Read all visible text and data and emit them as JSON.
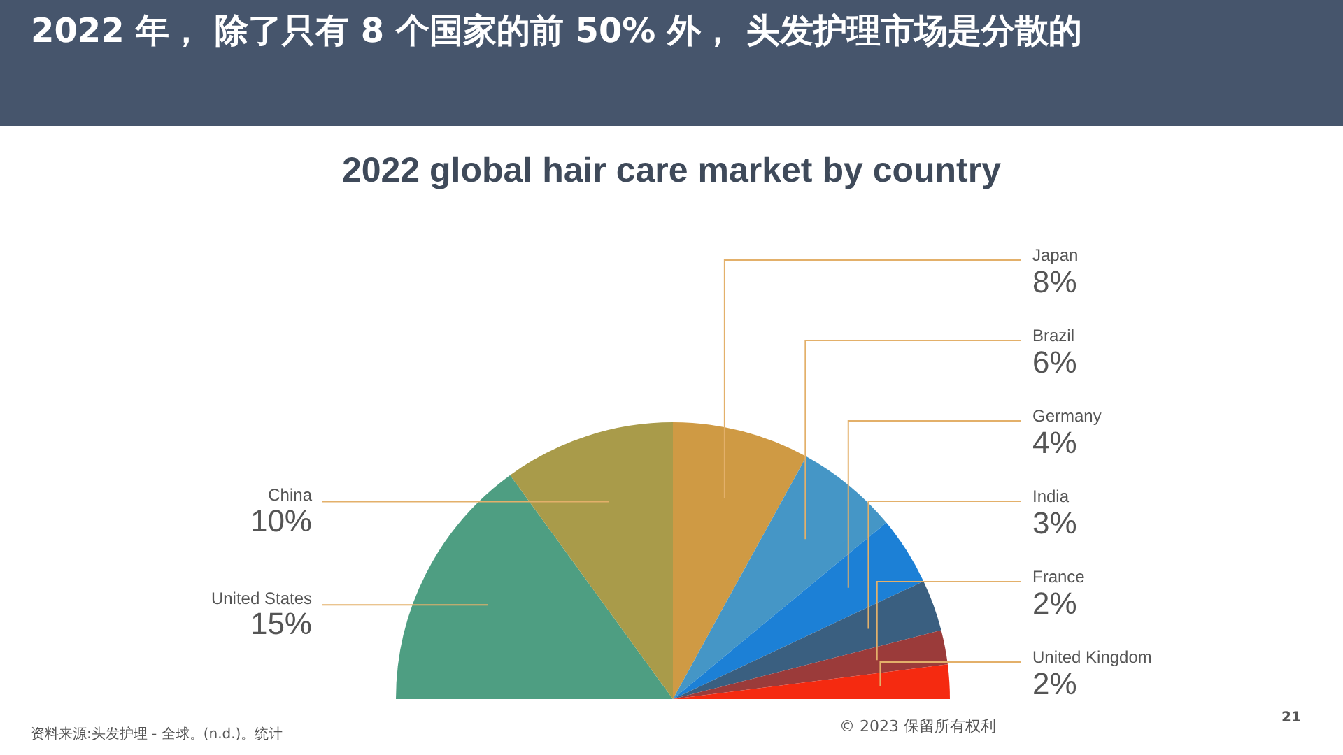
{
  "chart_data": {
    "type": "pie",
    "title": "2022 年， 除了只有 8 个国家的前 50% 外， 头发护理市场是分散的",
    "subtitle": "2022 global hair care market by country",
    "categories": [
      "United States",
      "China",
      "Japan",
      "Brazil",
      "Germany",
      "India",
      "France",
      "United Kingdom"
    ],
    "values": [
      15,
      10,
      8,
      6,
      4,
      3,
      2,
      2
    ],
    "value_labels": [
      "15%",
      "10%",
      "8%",
      "6%",
      "4%",
      "3%",
      "2%",
      "2%"
    ],
    "colors": [
      "#4e9e82",
      "#a99b4a",
      "#cf9a44",
      "#4596c6",
      "#1c80d6",
      "#3a5f80",
      "#9b3b3a",
      "#f52a10"
    ],
    "legend": false,
    "annotations": [
      "资料来源:头发护理 - 全球。(n.d.)。统计",
      "© 2023 保留所有权利",
      "21"
    ]
  }
}
